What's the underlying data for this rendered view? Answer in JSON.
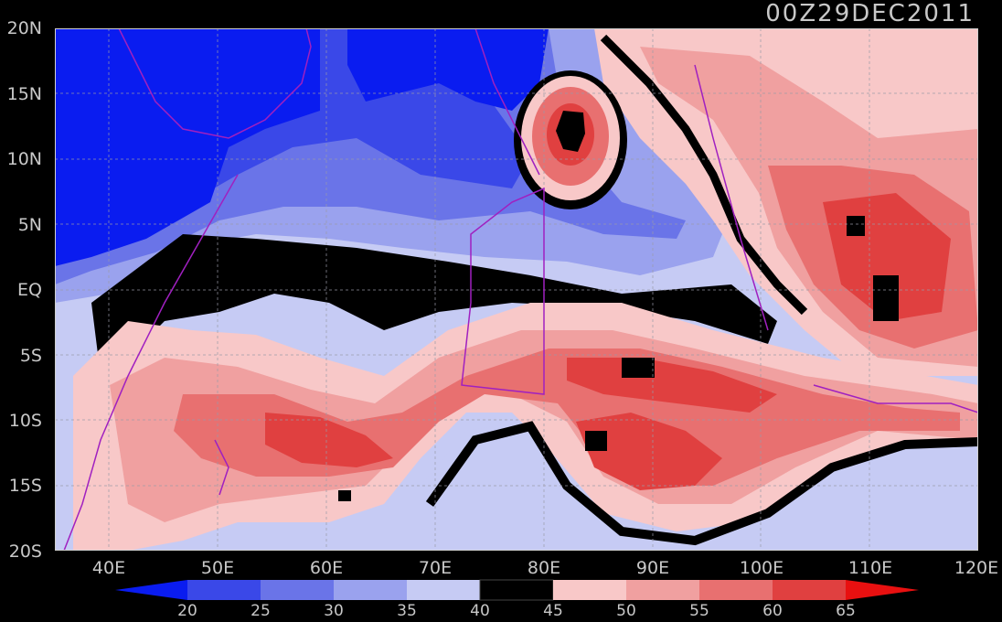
{
  "timestamp": "00Z29DEC2011",
  "lat_labels": [
    "20N",
    "15N",
    "10N",
    "5N",
    "EQ",
    "5S",
    "10S",
    "15S",
    "20S"
  ],
  "lon_labels": [
    "40E",
    "50E",
    "60E",
    "70E",
    "80E",
    "90E",
    "100E",
    "110E",
    "120E"
  ],
  "map_extent": {
    "lon": [
      35,
      120
    ],
    "lat": [
      -20,
      20
    ]
  },
  "colorbar": {
    "labels": [
      "20",
      "25",
      "30",
      "35",
      "40",
      "45",
      "50",
      "55",
      "60",
      "65"
    ],
    "colors": [
      "#0a1cf0",
      "#3a48e8",
      "#6a74e8",
      "#9aa2ee",
      "#c6cbf4",
      "#000000",
      "#f8c8c8",
      "#f0a0a0",
      "#e87070",
      "#e04040",
      "#e81010"
    ]
  },
  "palette": {
    "deep_blue": "#0a1cf0",
    "blue": "#3a48e8",
    "mid_blue": "#6a74e8",
    "light_blue": "#9aa2ee",
    "pale_blue": "#c6cbf4",
    "black": "#000000",
    "pale_red": "#f8c8c8",
    "light_red": "#f0a0a0",
    "red": "#e87070",
    "deep_red": "#e04040",
    "coast": "#a020c0"
  }
}
